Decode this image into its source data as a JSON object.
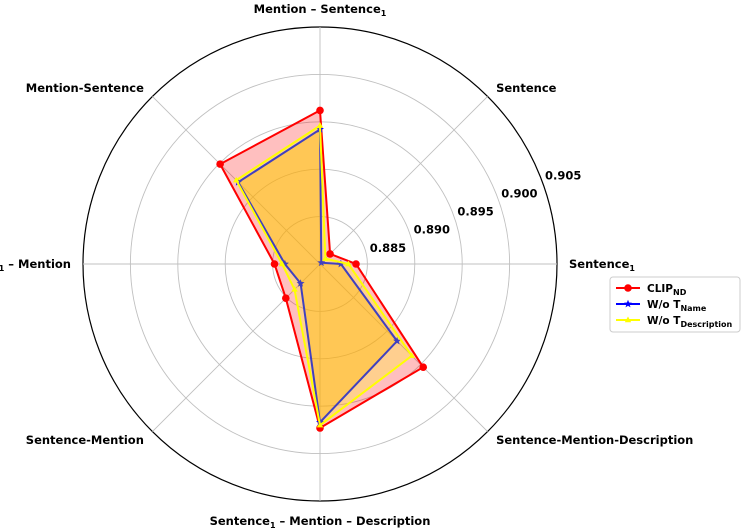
{
  "chart_data": {
    "type": "radar",
    "axes": [
      {
        "base": "Mention – Sentence",
        "sub": "1"
      },
      {
        "base": "Sentence",
        "sub": ""
      },
      {
        "base": "Sentence",
        "sub": "1"
      },
      {
        "base": "Sentence-Mention-Description",
        "sub": ""
      },
      {
        "base": "Sentence",
        "sub": "1",
        "suffix": " – Mention – Description"
      },
      {
        "base": "Sentence-Mention",
        "sub": ""
      },
      {
        "base": "Sentence",
        "sub": "1",
        "suffix": " – Mention"
      },
      {
        "base": "Mention-Sentence",
        "sub": ""
      }
    ],
    "rlim": [
      0.88,
      0.905
    ],
    "rticks": [
      0.885,
      0.89,
      0.895,
      0.9,
      0.905
    ],
    "rtick_labels": [
      "0.885",
      "0.890",
      "0.895",
      "0.900",
      "0.905"
    ],
    "grid": true,
    "legend_position": "right",
    "series": [
      {
        "name": "CLIP",
        "name_sub": "ND",
        "color": "#ff0000",
        "fill": "#ff0000",
        "fill_opacity": 0.25,
        "marker": "circle",
        "values": [
          0.8962,
          0.8815,
          0.8838,
          0.8954,
          0.8973,
          0.8851,
          0.8848,
          0.8949
        ]
      },
      {
        "name": "W/o T",
        "name_sub": "Name",
        "color": "#0000ff",
        "fill": "#ffa500",
        "fill_opacity": 0.4,
        "marker": "star",
        "values": [
          0.8942,
          0.8802,
          0.8822,
          0.8915,
          0.8967,
          0.8829,
          0.8837,
          0.8922
        ]
      },
      {
        "name": "W/o T",
        "name_sub": "Description",
        "color": "#ffff00",
        "fill": "#ffff00",
        "fill_opacity": 0.25,
        "marker": "triangle",
        "values": [
          0.8946,
          0.8808,
          0.883,
          0.8937,
          0.897,
          0.8838,
          0.884,
          0.8925
        ]
      }
    ]
  }
}
